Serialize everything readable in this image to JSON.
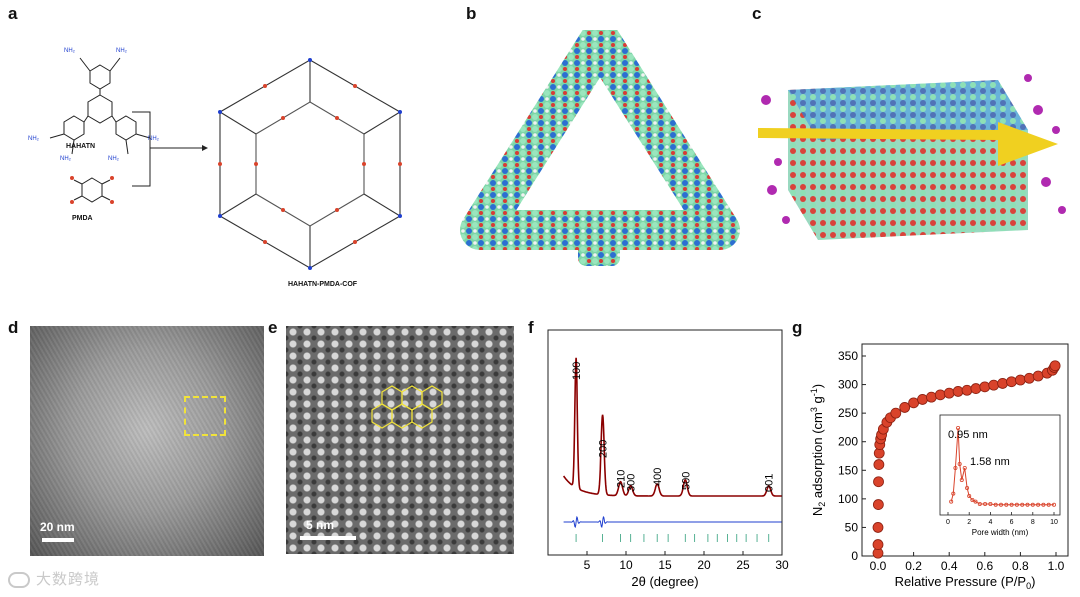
{
  "letters": {
    "a": "a",
    "b": "b",
    "c": "c",
    "d": "d",
    "e": "e",
    "f": "f",
    "g": "g"
  },
  "panel_a": {
    "monomer1": "HAHATN",
    "monomer2": "PMDA",
    "product": "HAHATN-PMDA-COF",
    "amine": "NH₂"
  },
  "panel_d": {
    "scale": "20 nm"
  },
  "panel_e": {
    "scale": "5 nm"
  },
  "watermark": "大数跨境",
  "colors": {
    "pxrd_line": "#8b0000",
    "pxrd_diff": "#1f3fcf",
    "pxrd_ticks": "#2e9e7a",
    "iso_marker": "#d9432b",
    "highlight": "#f0e23a"
  },
  "chart_data": [
    {
      "type": "line",
      "panel": "f",
      "xlabel": "2θ (degree)",
      "xlim": [
        0,
        30
      ],
      "xticks": [
        5,
        10,
        15,
        20,
        25,
        30
      ],
      "peaks": [
        {
          "label": "100",
          "x": 3.6
        },
        {
          "label": "200",
          "x": 7.0
        },
        {
          "label": "210",
          "x": 9.3
        },
        {
          "label": "300",
          "x": 10.6
        },
        {
          "label": "400",
          "x": 14.0
        },
        {
          "label": "500",
          "x": 17.6
        },
        {
          "label": "001",
          "x": 28.3
        }
      ]
    },
    {
      "type": "scatter",
      "panel": "g",
      "xlabel": "Relative Pressure (P/P",
      "xlabel_sub": "0",
      "xlabel_tail": ")",
      "ylabel": "N",
      "ylabel_sub": "2",
      "ylabel_mid": " adsorption (cm",
      "ylabel_sup1": "3",
      "ylabel_mid2": " g",
      "ylabel_sup2": "-1",
      "ylabel_tail": ")",
      "xlim": [
        0,
        1.0
      ],
      "xticks": [
        "0.0",
        "0.2",
        "0.4",
        "0.6",
        "0.8",
        "1.0"
      ],
      "ylim": [
        0,
        350
      ],
      "yticks": [
        "0",
        "50",
        "100",
        "150",
        "200",
        "250",
        "300",
        "350"
      ],
      "x": [
        0.0,
        0.0,
        0.0,
        0.002,
        0.003,
        0.005,
        0.007,
        0.01,
        0.015,
        0.02,
        0.03,
        0.05,
        0.07,
        0.1,
        0.15,
        0.2,
        0.25,
        0.3,
        0.35,
        0.4,
        0.45,
        0.5,
        0.55,
        0.6,
        0.65,
        0.7,
        0.75,
        0.8,
        0.85,
        0.9,
        0.95,
        0.98,
        0.99,
        0.995
      ],
      "y": [
        5,
        20,
        50,
        90,
        130,
        160,
        180,
        195,
        205,
        212,
        222,
        234,
        242,
        250,
        260,
        268,
        274,
        278,
        282,
        285,
        288,
        290,
        293,
        296,
        299,
        302,
        305,
        308,
        311,
        315,
        320,
        325,
        330,
        333
      ],
      "inset": {
        "xlabel": "Pore width (nm)",
        "xlim": [
          0,
          10
        ],
        "xticks": [
          "0",
          "2",
          "4",
          "6",
          "8",
          "10"
        ],
        "ann1": "0.95 nm",
        "ann2": "1.58 nm",
        "x": [
          0.3,
          0.5,
          0.7,
          0.95,
          1.1,
          1.3,
          1.58,
          1.8,
          2.0,
          2.3,
          2.6,
          3.0,
          3.5,
          4,
          4.5,
          5,
          5.5,
          6,
          6.5,
          7,
          7.5,
          8,
          8.5,
          9,
          9.5,
          10
        ],
        "y": [
          0.08,
          0.18,
          0.5,
          1.0,
          0.55,
          0.35,
          0.5,
          0.25,
          0.15,
          0.1,
          0.08,
          0.05,
          0.05,
          0.05,
          0.04,
          0.04,
          0.04,
          0.04,
          0.04,
          0.04,
          0.04,
          0.04,
          0.04,
          0.04,
          0.04,
          0.04
        ]
      }
    }
  ]
}
